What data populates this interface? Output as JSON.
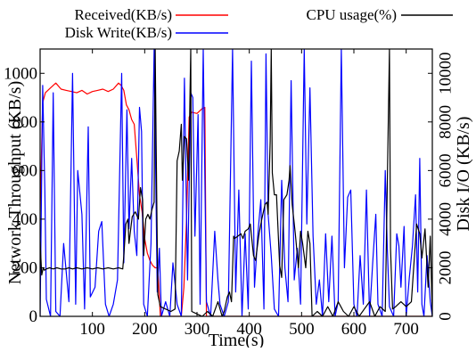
{
  "chart_data": {
    "type": "line",
    "title": "",
    "xlabel": "Time(s)",
    "ylabel_left": "Network Throughput (KB/s)",
    "ylabel_right": "Disk I/O (KB/s)",
    "xlim": [
      0,
      750
    ],
    "ylim_left": [
      0,
      1100
    ],
    "ylim_right": [
      0,
      11000
    ],
    "grid": false,
    "legend": "top",
    "x_ticks": [
      100,
      200,
      300,
      400,
      500,
      600,
      700
    ],
    "y_left_ticks": [
      0,
      200,
      400,
      600,
      800,
      1000
    ],
    "y_right_ticks": [
      0,
      2000,
      4000,
      6000,
      8000,
      10000
    ],
    "series": [
      {
        "name": "Received(KB/s)",
        "color": "#ff0000",
        "axis": "left",
        "points": [
          [
            0,
            430
          ],
          [
            5,
            880
          ],
          [
            10,
            920
          ],
          [
            20,
            940
          ],
          [
            30,
            960
          ],
          [
            40,
            935
          ],
          [
            50,
            930
          ],
          [
            60,
            925
          ],
          [
            70,
            920
          ],
          [
            80,
            930
          ],
          [
            90,
            915
          ],
          [
            100,
            925
          ],
          [
            110,
            930
          ],
          [
            120,
            935
          ],
          [
            130,
            925
          ],
          [
            140,
            935
          ],
          [
            150,
            960
          ],
          [
            155,
            950
          ],
          [
            160,
            930
          ],
          [
            165,
            870
          ],
          [
            170,
            850
          ],
          [
            175,
            810
          ],
          [
            180,
            790
          ],
          [
            185,
            650
          ],
          [
            190,
            500
          ],
          [
            195,
            430
          ],
          [
            200,
            320
          ],
          [
            205,
            260
          ],
          [
            210,
            230
          ],
          [
            215,
            210
          ],
          [
            220,
            200
          ],
          [
            225,
            200
          ],
          [
            230,
            0
          ],
          [
            240,
            0
          ],
          [
            250,
            0
          ],
          [
            260,
            0
          ],
          [
            270,
            0
          ],
          [
            275,
            120
          ],
          [
            280,
            400
          ],
          [
            285,
            820
          ],
          [
            290,
            840
          ],
          [
            300,
            835
          ],
          [
            310,
            855
          ],
          [
            315,
            860
          ],
          [
            318,
            0
          ],
          [
            330,
            0
          ],
          [
            750,
            0
          ]
        ]
      },
      {
        "name": "Disk Write(KB/s)",
        "color": "#0000ff",
        "axis": "right",
        "points": [
          [
            0,
            0
          ],
          [
            5,
            9500
          ],
          [
            9,
            5200
          ],
          [
            12,
            700
          ],
          [
            20,
            0
          ],
          [
            25,
            9200
          ],
          [
            30,
            200
          ],
          [
            38,
            0
          ],
          [
            45,
            3000
          ],
          [
            55,
            600
          ],
          [
            62,
            10000
          ],
          [
            68,
            500
          ],
          [
            72,
            6000
          ],
          [
            80,
            4200
          ],
          [
            85,
            300
          ],
          [
            92,
            7800
          ],
          [
            96,
            800
          ],
          [
            105,
            1200
          ],
          [
            112,
            3500
          ],
          [
            118,
            3900
          ],
          [
            125,
            500
          ],
          [
            132,
            0
          ],
          [
            140,
            500
          ],
          [
            148,
            1500
          ],
          [
            156,
            10000
          ],
          [
            160,
            2200
          ],
          [
            166,
            8500
          ],
          [
            170,
            3600
          ],
          [
            175,
            6500
          ],
          [
            180,
            3500
          ],
          [
            185,
            2500
          ],
          [
            190,
            8600
          ],
          [
            194,
            7600
          ],
          [
            198,
            500
          ],
          [
            205,
            0
          ],
          [
            212,
            3000
          ],
          [
            218,
            11000
          ],
          [
            224,
            1000
          ],
          [
            228,
            2800
          ],
          [
            232,
            0
          ],
          [
            240,
            600
          ],
          [
            248,
            0
          ],
          [
            254,
            2200
          ],
          [
            262,
            500
          ],
          [
            270,
            0
          ],
          [
            276,
            9800
          ],
          [
            282,
            1500
          ],
          [
            288,
            9200
          ],
          [
            292,
            9000
          ],
          [
            296,
            3300
          ],
          [
            302,
            8300
          ],
          [
            306,
            500
          ],
          [
            312,
            11000
          ],
          [
            318,
            600
          ],
          [
            326,
            0
          ],
          [
            334,
            3500
          ],
          [
            340,
            1500
          ],
          [
            344,
            500
          ],
          [
            352,
            0
          ],
          [
            360,
            600
          ],
          [
            368,
            11000
          ],
          [
            374,
            1000
          ],
          [
            380,
            5200
          ],
          [
            386,
            0
          ],
          [
            392,
            3400
          ],
          [
            398,
            300
          ],
          [
            404,
            10500
          ],
          [
            410,
            1200
          ],
          [
            416,
            3300
          ],
          [
            422,
            4800
          ],
          [
            428,
            300
          ],
          [
            432,
            10800
          ],
          [
            436,
            4200
          ],
          [
            442,
            2500
          ],
          [
            448,
            300
          ],
          [
            456,
            0
          ],
          [
            462,
            5600
          ],
          [
            468,
            2000
          ],
          [
            474,
            600
          ],
          [
            480,
            9700
          ],
          [
            486,
            1500
          ],
          [
            492,
            2800
          ],
          [
            498,
            500
          ],
          [
            505,
            11000
          ],
          [
            510,
            3800
          ],
          [
            516,
            9400
          ],
          [
            522,
            3300
          ],
          [
            528,
            500
          ],
          [
            534,
            1500
          ],
          [
            540,
            0
          ],
          [
            546,
            3400
          ],
          [
            552,
            600
          ],
          [
            558,
            3300
          ],
          [
            564,
            0
          ],
          [
            570,
            600
          ],
          [
            576,
            11000
          ],
          [
            582,
            2000
          ],
          [
            588,
            4900
          ],
          [
            594,
            5200
          ],
          [
            600,
            500
          ],
          [
            606,
            0
          ],
          [
            612,
            2500
          ],
          [
            618,
            500
          ],
          [
            624,
            5200
          ],
          [
            630,
            0
          ],
          [
            636,
            2200
          ],
          [
            642,
            4200
          ],
          [
            646,
            500
          ],
          [
            654,
            0
          ],
          [
            660,
            6000
          ],
          [
            664,
            2800
          ],
          [
            668,
            400
          ],
          [
            676,
            0
          ],
          [
            682,
            3400
          ],
          [
            686,
            2900
          ],
          [
            690,
            1200
          ],
          [
            696,
            3700
          ],
          [
            700,
            0
          ],
          [
            706,
            1600
          ],
          [
            712,
            2900
          ],
          [
            718,
            5000
          ],
          [
            722,
            1000
          ],
          [
            726,
            6500
          ],
          [
            730,
            500
          ],
          [
            734,
            0
          ],
          [
            740,
            2500
          ],
          [
            746,
            600
          ],
          [
            750,
            0
          ]
        ]
      },
      {
        "name": "CPU usage(%)",
        "color": "#000000",
        "axis": "left",
        "points": [
          [
            0,
            310
          ],
          [
            3,
            170
          ],
          [
            6,
            200
          ],
          [
            8,
            190
          ],
          [
            12,
            195
          ],
          [
            18,
            200
          ],
          [
            25,
            195
          ],
          [
            32,
            200
          ],
          [
            40,
            195
          ],
          [
            48,
            195
          ],
          [
            55,
            200
          ],
          [
            62,
            195
          ],
          [
            70,
            200
          ],
          [
            80,
            195
          ],
          [
            90,
            200
          ],
          [
            100,
            195
          ],
          [
            110,
            200
          ],
          [
            120,
            195
          ],
          [
            130,
            200
          ],
          [
            140,
            195
          ],
          [
            150,
            200
          ],
          [
            158,
            195
          ],
          [
            160,
            250
          ],
          [
            164,
            380
          ],
          [
            168,
            400
          ],
          [
            170,
            300
          ],
          [
            176,
            410
          ],
          [
            182,
            430
          ],
          [
            188,
            400
          ],
          [
            192,
            530
          ],
          [
            196,
            480
          ],
          [
            198,
            250
          ],
          [
            202,
            400
          ],
          [
            206,
            420
          ],
          [
            210,
            400
          ],
          [
            214,
            440
          ],
          [
            218,
            470
          ],
          [
            220,
            1100
          ],
          [
            222,
            700
          ],
          [
            225,
            90
          ],
          [
            230,
            40
          ],
          [
            240,
            30
          ],
          [
            250,
            20
          ],
          [
            258,
            30
          ],
          [
            262,
            640
          ],
          [
            266,
            680
          ],
          [
            270,
            790
          ],
          [
            272,
            560
          ],
          [
            276,
            740
          ],
          [
            280,
            730
          ],
          [
            284,
            560
          ],
          [
            288,
            1100
          ],
          [
            290,
            20
          ],
          [
            300,
            10
          ],
          [
            310,
            0
          ],
          [
            320,
            20
          ],
          [
            330,
            0
          ],
          [
            340,
            60
          ],
          [
            348,
            0
          ],
          [
            352,
            20
          ],
          [
            358,
            80
          ],
          [
            362,
            100
          ],
          [
            366,
            60
          ],
          [
            370,
            330
          ],
          [
            372,
            320
          ],
          [
            378,
            330
          ],
          [
            384,
            340
          ],
          [
            388,
            320
          ],
          [
            392,
            350
          ],
          [
            398,
            360
          ],
          [
            402,
            380
          ],
          [
            408,
            250
          ],
          [
            412,
            230
          ],
          [
            418,
            330
          ],
          [
            424,
            400
          ],
          [
            430,
            460
          ],
          [
            434,
            470
          ],
          [
            436,
            420
          ],
          [
            440,
            720
          ],
          [
            442,
            1100
          ],
          [
            444,
            590
          ],
          [
            448,
            500
          ],
          [
            452,
            500
          ],
          [
            458,
            210
          ],
          [
            462,
            160
          ],
          [
            466,
            480
          ],
          [
            472,
            500
          ],
          [
            476,
            560
          ],
          [
            478,
            620
          ],
          [
            482,
            460
          ],
          [
            488,
            340
          ],
          [
            494,
            200
          ],
          [
            498,
            350
          ],
          [
            502,
            300
          ],
          [
            508,
            200
          ],
          [
            512,
            350
          ],
          [
            516,
            300
          ],
          [
            520,
            0
          ],
          [
            530,
            20
          ],
          [
            540,
            0
          ],
          [
            550,
            40
          ],
          [
            560,
            0
          ],
          [
            570,
            60
          ],
          [
            580,
            20
          ],
          [
            590,
            0
          ],
          [
            600,
            40
          ],
          [
            610,
            0
          ],
          [
            620,
            30
          ],
          [
            630,
            60
          ],
          [
            640,
            0
          ],
          [
            650,
            40
          ],
          [
            660,
            20
          ],
          [
            668,
            1100
          ],
          [
            670,
            280
          ],
          [
            674,
            30
          ],
          [
            680,
            40
          ],
          [
            690,
            60
          ],
          [
            700,
            40
          ],
          [
            710,
            60
          ],
          [
            720,
            380
          ],
          [
            726,
            340
          ],
          [
            730,
            240
          ],
          [
            736,
            360
          ],
          [
            742,
            120
          ],
          [
            746,
            330
          ],
          [
            750,
            0
          ]
        ]
      }
    ]
  }
}
